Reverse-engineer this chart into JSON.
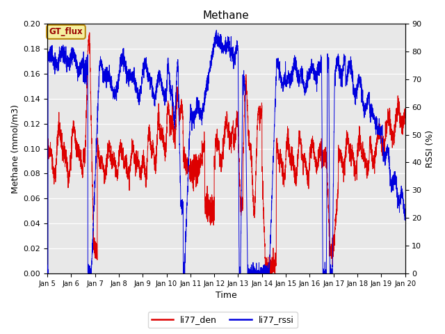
{
  "title": "Methane",
  "xlabel": "Time",
  "ylabel_left": "Methane (mmol/m3)",
  "ylabel_right": "RSSI (%)",
  "left_ylim": [
    0.0,
    0.2
  ],
  "right_ylim": [
    0,
    90
  ],
  "background_color": "#e8e8e8",
  "fig_background": "#ffffff",
  "red_color": "#dd0000",
  "blue_color": "#0000dd",
  "gt_flux_label": "GT_flux",
  "legend_labels": [
    "li77_den",
    "li77_rssi"
  ],
  "x_ticks": [
    5,
    6,
    7,
    8,
    9,
    10,
    11,
    12,
    13,
    14,
    15,
    16,
    17,
    18,
    19,
    20
  ],
  "x_tick_labels": [
    "Jan 5",
    "Jan 6",
    "Jan 7",
    "Jan 8",
    "Jan 9",
    "Jan 10",
    "Jan 11",
    "Jan 12",
    "Jan 13",
    "Jan 14",
    "Jan 15",
    "Jan 16",
    "Jan 17",
    "Jan 18",
    "Jan 19",
    "Jan 20"
  ],
  "right_yticks": [
    0,
    10,
    20,
    30,
    40,
    50,
    60,
    70,
    80,
    90
  ],
  "left_yticks": [
    0.0,
    0.02,
    0.04,
    0.06,
    0.08,
    0.1,
    0.12,
    0.14,
    0.16,
    0.18,
    0.2
  ]
}
